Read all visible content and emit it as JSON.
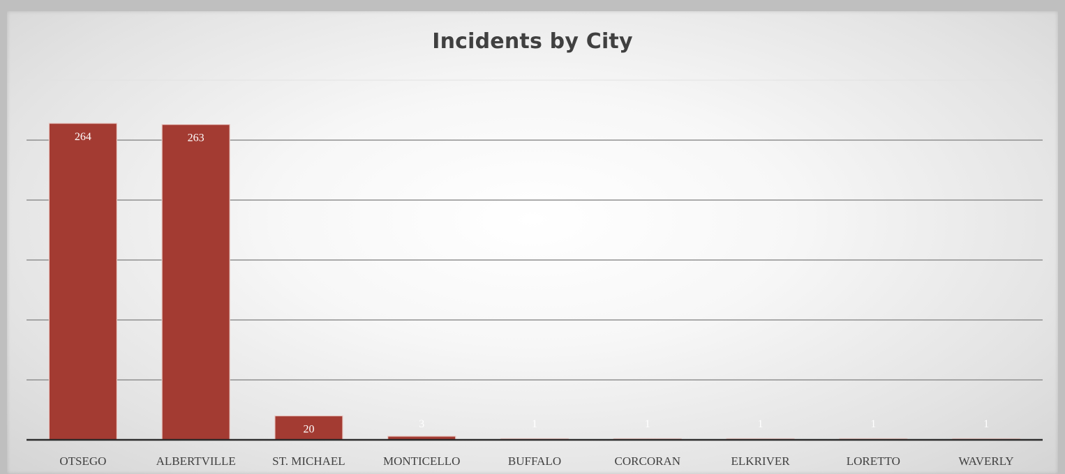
{
  "chart_data": {
    "type": "bar",
    "title": "Incidents by City",
    "categories": [
      "OTSEGO",
      "ALBERTVILLE",
      "ST. MICHAEL",
      "MONTICELLO",
      "BUFFALO",
      "CORCORAN",
      "ELKRIVER",
      "LORETTO",
      "WAVERLY"
    ],
    "values": [
      264,
      263,
      20,
      3,
      1,
      1,
      1,
      1,
      1
    ],
    "xlabel": "",
    "ylabel": "",
    "ylim": [
      0,
      300
    ],
    "grid": true,
    "legend": "none",
    "colors": {
      "bar": "#a33b32",
      "bar_edge": "#e8c9c4",
      "grid": "#8f8f8f",
      "axis": "#2b2b2b",
      "label": "#404040"
    }
  }
}
